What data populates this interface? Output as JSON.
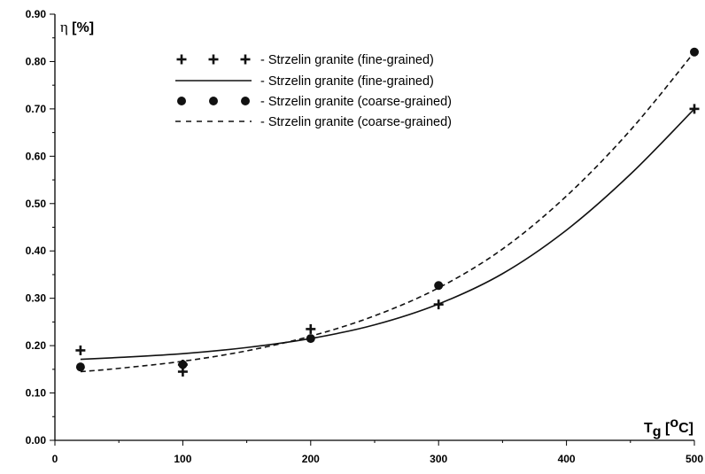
{
  "chart_data": {
    "type": "scatter",
    "ylabel": {
      "symbol": "η",
      "unit": "[%]"
    },
    "xlabel": {
      "symbol": "T",
      "subscript": "g",
      "unit_prefix": "[",
      "unit_sup": "o",
      "unit_suffix": "C]"
    },
    "xlim": [
      0,
      500
    ],
    "ylim": [
      0,
      0.9
    ],
    "x_ticks": [
      "0",
      "100",
      "200",
      "300",
      "400",
      "500"
    ],
    "x_tick_values": [
      0,
      100,
      200,
      300,
      400,
      500
    ],
    "y_ticks": [
      "0.00",
      "0.10",
      "0.20",
      "0.30",
      "0.40",
      "0.50",
      "0.60",
      "0.70",
      "0.80",
      "0.90"
    ],
    "y_tick_values": [
      0,
      0.1,
      0.2,
      0.3,
      0.4,
      0.5,
      0.6,
      0.7,
      0.8,
      0.9
    ],
    "grid": false,
    "legend_position": "top-left",
    "series": [
      {
        "name": "- Strzelin granite (fine-grained)",
        "kind": "markers",
        "marker": "plus",
        "x": [
          20,
          100,
          100,
          200,
          300,
          500
        ],
        "y": [
          0.19,
          0.145,
          0.16,
          0.235,
          0.287,
          0.7
        ]
      },
      {
        "name": "- Strzelin granite (fine-grained)",
        "kind": "line",
        "style": "solid",
        "x": [
          20,
          50,
          100,
          150,
          200,
          250,
          300,
          350,
          400,
          450,
          500
        ],
        "y": [
          0.171,
          0.175,
          0.183,
          0.196,
          0.215,
          0.244,
          0.288,
          0.352,
          0.444,
          0.562,
          0.7
        ]
      },
      {
        "name": "- Strzelin granite (coarse-grained)",
        "kind": "markers",
        "marker": "circle",
        "x": [
          20,
          100,
          200,
          300,
          500
        ],
        "y": [
          0.155,
          0.16,
          0.215,
          0.327,
          0.82
        ]
      },
      {
        "name": "- Strzelin granite (coarse-grained)",
        "kind": "line",
        "style": "dashed",
        "x": [
          20,
          50,
          100,
          150,
          200,
          250,
          300,
          350,
          400,
          450,
          500
        ],
        "y": [
          0.145,
          0.152,
          0.167,
          0.189,
          0.22,
          0.263,
          0.322,
          0.404,
          0.516,
          0.655,
          0.82
        ]
      }
    ]
  }
}
